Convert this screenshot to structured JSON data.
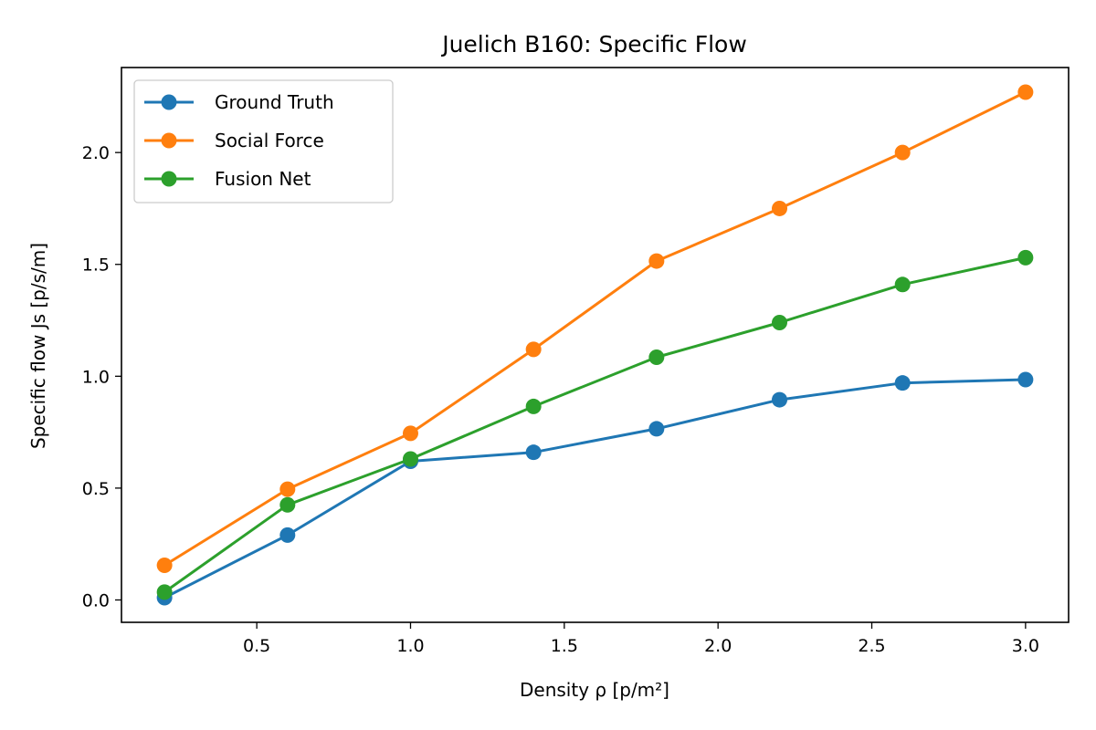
{
  "chart_data": {
    "type": "line",
    "title": "Juelich B160: Specific Flow",
    "xlabel": "Density ρ [p/m²]",
    "ylabel": "Specific flow Js [p/s/m]",
    "xlim": [
      0.06,
      3.14
    ],
    "ylim": [
      -0.1,
      2.38
    ],
    "xticks": [
      0.5,
      1.0,
      1.5,
      2.0,
      2.5,
      3.0
    ],
    "xtick_labels": [
      "0.5",
      "1.0",
      "1.5",
      "2.0",
      "2.5",
      "3.0"
    ],
    "yticks": [
      0.0,
      0.5,
      1.0,
      1.5,
      2.0
    ],
    "ytick_labels": [
      "0.0",
      "0.5",
      "1.0",
      "1.5",
      "2.0"
    ],
    "grid": false,
    "legend_position": "top-left",
    "x": [
      0.2,
      0.6,
      1.0,
      1.4,
      1.8,
      2.2,
      2.6,
      3.0
    ],
    "series": [
      {
        "name": "Ground Truth",
        "color": "#1f77b4",
        "values": [
          0.01,
          0.29,
          0.62,
          0.66,
          0.765,
          0.895,
          0.97,
          0.985
        ]
      },
      {
        "name": "Social Force",
        "color": "#ff7f0e",
        "values": [
          0.155,
          0.495,
          0.745,
          1.12,
          1.515,
          1.75,
          2.0,
          2.27
        ]
      },
      {
        "name": "Fusion Net",
        "color": "#2ca02c",
        "values": [
          0.035,
          0.425,
          0.63,
          0.865,
          1.085,
          1.24,
          1.41,
          1.53
        ]
      }
    ]
  }
}
